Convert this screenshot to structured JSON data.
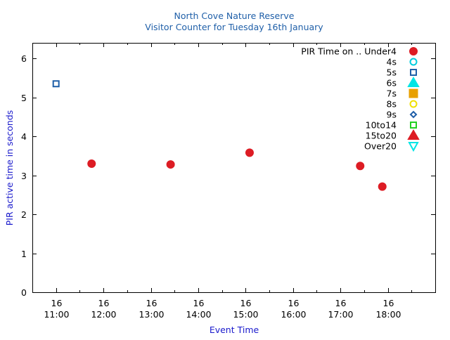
{
  "chart_data": {
    "type": "scatter",
    "title": "North Cove Nature Reserve",
    "subtitle": "Visitor Counter for Tuesday 16th January",
    "xlabel": "Event Time",
    "ylabel": "PIR active time in seconds",
    "title_color": "#1f5fa8",
    "axis_label_color": "#1a1acc",
    "xlim": [
      "10:30",
      "19:00"
    ],
    "ylim": [
      0,
      6.4
    ],
    "yticks": [
      "0",
      "1",
      "2",
      "3",
      "4",
      "5",
      "6"
    ],
    "xticks": [
      {
        "x": "11:00",
        "day": "16",
        "time": "11:00"
      },
      {
        "x": "12:00",
        "day": "16",
        "time": "12:00"
      },
      {
        "x": "13:00",
        "day": "16",
        "time": "13:00"
      },
      {
        "x": "14:00",
        "day": "16",
        "time": "14:00"
      },
      {
        "x": "15:00",
        "day": "16",
        "time": "15:00"
      },
      {
        "x": "16:00",
        "day": "16",
        "time": "16:00"
      },
      {
        "x": "17:00",
        "day": "16",
        "time": "17:00"
      },
      {
        "x": "18:00",
        "day": "16",
        "time": "18:00"
      }
    ],
    "grid": false,
    "legend_position": "top-right",
    "series": [
      {
        "name": "PIR Time on .. Under4",
        "marker": "circle",
        "filled": true,
        "color": "#dd1c24",
        "points": [
          {
            "x": "11:45",
            "y": 3.3
          },
          {
            "x": "13:25",
            "y": 3.28
          },
          {
            "x": "15:05",
            "y": 3.58
          },
          {
            "x": "17:25",
            "y": 3.24
          },
          {
            "x": "17:53",
            "y": 2.71
          }
        ]
      },
      {
        "name": "4s",
        "marker": "circle",
        "filled": false,
        "color": "#00ccdd",
        "points": []
      },
      {
        "name": "5s",
        "marker": "square",
        "filled": false,
        "color": "#1f5fa8",
        "points": [
          {
            "x": "11:00",
            "y": 5.35
          }
        ]
      },
      {
        "name": "6s",
        "marker": "triangle-up",
        "filled": true,
        "color": "#00e5e5",
        "points": []
      },
      {
        "name": "7s",
        "marker": "square",
        "filled": true,
        "color": "#e8a000",
        "points": []
      },
      {
        "name": "8s",
        "marker": "circle",
        "filled": false,
        "color": "#f0e000",
        "points": []
      },
      {
        "name": "9s",
        "marker": "diamond",
        "filled": false,
        "color": "#1f5fa8",
        "points": []
      },
      {
        "name": "10to14",
        "marker": "square",
        "filled": false,
        "color": "#22d022",
        "points": []
      },
      {
        "name": "15to20",
        "marker": "triangle-up",
        "filled": true,
        "color": "#dd1c24",
        "points": []
      },
      {
        "name": "Over20",
        "marker": "triangle-down",
        "filled": false,
        "color": "#00e5e5",
        "points": []
      }
    ]
  }
}
